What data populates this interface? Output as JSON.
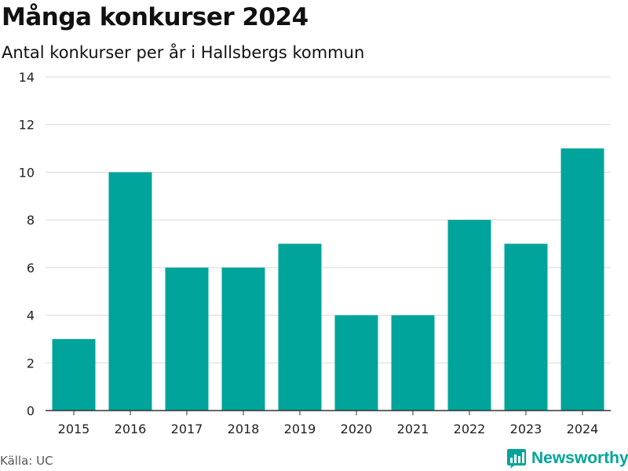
{
  "header": {
    "title": "Många konkurser 2024",
    "subtitle": "Antal konkurser per år i Hallsbergs kommun"
  },
  "footer": {
    "source": "Källa: UC",
    "brand": "Newsworthy",
    "brand_icon": "bar-chart-logo-icon"
  },
  "colors": {
    "bar": "#00a49a",
    "grid": "#d9d9d9",
    "axis": "#333333",
    "text": "#111111"
  },
  "chart_data": {
    "type": "bar",
    "title": "Många konkurser 2024",
    "subtitle": "Antal konkurser per år i Hallsbergs kommun",
    "categories": [
      "2015",
      "2016",
      "2017",
      "2018",
      "2019",
      "2020",
      "2021",
      "2022",
      "2023",
      "2024"
    ],
    "values": [
      3,
      10,
      6,
      6,
      7,
      4,
      4,
      8,
      7,
      11
    ],
    "ylim": [
      0,
      14
    ],
    "yticks": [
      0,
      2,
      4,
      6,
      8,
      10,
      12,
      14
    ],
    "grid": true,
    "legend": "none"
  }
}
